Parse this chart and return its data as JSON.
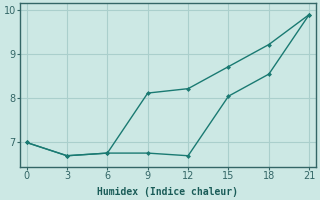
{
  "xlabel": "Humidex (Indice chaleur)",
  "background_color": "#cce8e4",
  "grid_color": "#aacfcc",
  "line_color": "#1a7a72",
  "xlim": [
    -0.5,
    21.5
  ],
  "ylim": [
    6.45,
    10.15
  ],
  "xticks": [
    0,
    3,
    6,
    9,
    12,
    15,
    18,
    21
  ],
  "yticks": [
    7,
    8,
    9,
    10
  ],
  "line1_x": [
    0,
    3,
    6,
    9,
    12,
    15,
    18,
    21
  ],
  "line1_y": [
    7.0,
    6.7,
    6.76,
    8.12,
    8.22,
    8.72,
    9.22,
    9.9
  ],
  "line2_x": [
    0,
    3,
    6,
    9,
    12,
    15,
    18,
    21
  ],
  "line2_y": [
    7.0,
    6.7,
    6.76,
    6.76,
    6.7,
    8.05,
    8.55,
    9.9
  ]
}
